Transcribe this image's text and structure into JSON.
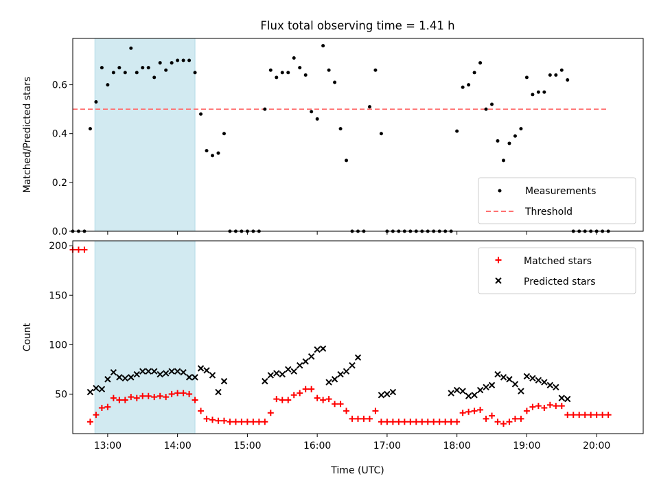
{
  "figure": {
    "title": "Flux total observing time = 1.41 h",
    "xlabel": "Time (UTC)"
  },
  "chart_data": [
    {
      "type": "scatter",
      "title": "Flux total observing time = 1.41 h",
      "ylabel": "Matched/Predicted stars",
      "xlim": [
        "12:30",
        "20:40"
      ],
      "ylim": [
        0,
        0.79
      ],
      "yticks": [
        0.0,
        0.2,
        0.4,
        0.6
      ],
      "ytick_labels": [
        "0.0",
        "0.2",
        "0.4",
        "0.6"
      ],
      "shaded_span": {
        "start": "12:49",
        "end": "14:15",
        "color": "#add8e6"
      },
      "threshold": {
        "value": 0.5,
        "from": "12:30",
        "to": "20:10",
        "color": "#ff7070"
      },
      "legend": {
        "position": "lower-right",
        "entries": [
          "Measurements",
          "Threshold"
        ]
      },
      "series": [
        {
          "name": "Measurements",
          "color": "#000000",
          "x": [
            "12:30",
            "12:35",
            "12:40",
            "12:45",
            "12:50",
            "12:55",
            "13:00",
            "13:05",
            "13:10",
            "13:15",
            "13:20",
            "13:25",
            "13:30",
            "13:35",
            "13:40",
            "13:45",
            "13:50",
            "13:55",
            "14:00",
            "14:05",
            "14:10",
            "14:15",
            "14:20",
            "14:25",
            "14:30",
            "14:35",
            "14:40",
            "14:45",
            "14:50",
            "14:55",
            "15:00",
            "15:05",
            "15:10",
            "15:15",
            "15:20",
            "15:25",
            "15:30",
            "15:35",
            "15:40",
            "15:45",
            "15:50",
            "15:55",
            "16:00",
            "16:05",
            "16:10",
            "16:15",
            "16:20",
            "16:25",
            "16:30",
            "16:35",
            "16:40",
            "16:45",
            "16:50",
            "16:55",
            "17:00",
            "17:05",
            "17:10",
            "17:15",
            "17:20",
            "17:25",
            "17:30",
            "17:35",
            "17:40",
            "17:45",
            "17:50",
            "17:55",
            "18:00",
            "18:05",
            "18:10",
            "18:15",
            "18:20",
            "18:25",
            "18:30",
            "18:35",
            "18:40",
            "18:45",
            "18:50",
            "18:55",
            "19:00",
            "19:05",
            "19:10",
            "19:15",
            "19:20",
            "19:25",
            "19:30",
            "19:35",
            "19:40",
            "19:45",
            "19:50",
            "19:55",
            "20:00",
            "20:05",
            "20:10"
          ],
          "y": [
            0,
            0,
            0,
            0.42,
            0.53,
            0.67,
            0.6,
            0.65,
            0.67,
            0.65,
            0.75,
            0.65,
            0.67,
            0.67,
            0.63,
            0.69,
            0.66,
            0.69,
            0.7,
            0.7,
            0.7,
            0.65,
            0.48,
            0.33,
            0.31,
            0.32,
            0.4,
            0,
            0,
            0,
            0,
            0,
            0,
            0.5,
            0.66,
            0.63,
            0.65,
            0.65,
            0.71,
            0.67,
            0.64,
            0.49,
            0.46,
            0.76,
            0.66,
            0.61,
            0.42,
            0.29,
            0,
            0,
            0,
            0.51,
            0.66,
            0.4,
            0,
            0,
            0,
            0,
            0,
            0,
            0,
            0,
            0,
            0,
            0,
            0,
            0.41,
            0.59,
            0.6,
            0.65,
            0.69,
            0.5,
            0.52,
            0.37,
            0.29,
            0.36,
            0.39,
            0.42,
            0.63,
            0.56,
            0.57,
            0.57,
            0.64,
            0.64,
            0.66,
            0.62,
            0,
            0,
            0,
            0,
            0,
            0,
            0
          ]
        }
      ]
    },
    {
      "type": "scatter",
      "ylabel": "Count",
      "xlim": [
        "12:30",
        "20:40"
      ],
      "ylim": [
        10,
        205
      ],
      "yticks": [
        50,
        100,
        150,
        200
      ],
      "ytick_labels": [
        "50",
        "100",
        "150",
        "200"
      ],
      "xticks": [
        "13:00",
        "14:00",
        "15:00",
        "16:00",
        "17:00",
        "18:00",
        "19:00",
        "20:00"
      ],
      "shaded_span": {
        "start": "12:49",
        "end": "14:15",
        "color": "#add8e6"
      },
      "legend": {
        "position": "top-right",
        "entries": [
          "Matched stars",
          "Predicted stars"
        ]
      },
      "series": [
        {
          "name": "Matched stars",
          "color": "#ff0000",
          "x": [
            "12:30",
            "12:35",
            "12:40",
            "12:45",
            "12:50",
            "12:55",
            "13:00",
            "13:05",
            "13:10",
            "13:15",
            "13:20",
            "13:25",
            "13:30",
            "13:35",
            "13:40",
            "13:45",
            "13:50",
            "13:55",
            "14:00",
            "14:05",
            "14:10",
            "14:15",
            "14:20",
            "14:25",
            "14:30",
            "14:35",
            "14:40",
            "14:45",
            "14:50",
            "14:55",
            "15:00",
            "15:05",
            "15:10",
            "15:15",
            "15:20",
            "15:25",
            "15:30",
            "15:35",
            "15:40",
            "15:45",
            "15:50",
            "15:55",
            "16:00",
            "16:05",
            "16:10",
            "16:15",
            "16:20",
            "16:25",
            "16:30",
            "16:35",
            "16:40",
            "16:45",
            "16:50",
            "16:55",
            "17:00",
            "17:05",
            "17:10",
            "17:15",
            "17:20",
            "17:25",
            "17:30",
            "17:35",
            "17:40",
            "17:45",
            "17:50",
            "17:55",
            "18:00",
            "18:05",
            "18:10",
            "18:15",
            "18:20",
            "18:25",
            "18:30",
            "18:35",
            "18:40",
            "18:45",
            "18:50",
            "18:55",
            "19:00",
            "19:05",
            "19:10",
            "19:15",
            "19:20",
            "19:25",
            "19:30",
            "19:35",
            "19:40",
            "19:45",
            "19:50",
            "19:55",
            "20:00",
            "20:05",
            "20:10"
          ],
          "y": [
            196,
            196,
            196,
            22,
            29,
            36,
            37,
            46,
            44,
            44,
            47,
            46,
            48,
            48,
            47,
            48,
            47,
            50,
            51,
            51,
            50,
            44,
            33,
            25,
            24,
            23,
            23,
            22,
            22,
            22,
            22,
            22,
            22,
            22,
            31,
            45,
            44,
            44,
            49,
            51,
            55,
            55,
            46,
            44,
            45,
            40,
            40,
            33,
            25,
            25,
            25,
            25,
            33,
            22,
            22,
            22,
            22,
            22,
            22,
            22,
            22,
            22,
            22,
            22,
            22,
            22,
            22,
            31,
            32,
            33,
            34,
            25,
            28,
            22,
            20,
            22,
            25,
            25,
            33,
            37,
            38,
            36,
            39,
            38,
            38,
            29,
            29,
            29,
            29,
            29,
            29,
            29,
            29
          ]
        },
        {
          "name": "Predicted stars",
          "color": "#000000",
          "x": [
            "12:45",
            "12:50",
            "12:55",
            "13:00",
            "13:05",
            "13:10",
            "13:15",
            "13:20",
            "13:25",
            "13:30",
            "13:35",
            "13:40",
            "13:45",
            "13:50",
            "13:55",
            "14:00",
            "14:05",
            "14:10",
            "14:15",
            "14:20",
            "14:25",
            "14:30",
            "14:35",
            "14:40",
            "15:15",
            "15:20",
            "15:25",
            "15:30",
            "15:35",
            "15:40",
            "15:45",
            "15:50",
            "15:55",
            "16:00",
            "16:05",
            "16:10",
            "16:15",
            "16:20",
            "16:25",
            "16:30",
            "16:35",
            "16:55",
            "17:00",
            "17:05",
            "17:55",
            "18:00",
            "18:05",
            "18:10",
            "18:15",
            "18:20",
            "18:25",
            "18:30",
            "18:35",
            "18:40",
            "18:45",
            "18:50",
            "18:55",
            "19:00",
            "19:05",
            "19:10",
            "19:15",
            "19:20",
            "19:25",
            "19:30",
            "19:35"
          ],
          "y": [
            52,
            56,
            55,
            65,
            72,
            67,
            66,
            67,
            70,
            73,
            73,
            73,
            70,
            71,
            73,
            73,
            72,
            67,
            67,
            76,
            74,
            69,
            52,
            63,
            63,
            69,
            71,
            70,
            75,
            73,
            79,
            83,
            88,
            95,
            96,
            62,
            65,
            70,
            73,
            79,
            87,
            49,
            50,
            52,
            51,
            54,
            53,
            48,
            49,
            54,
            57,
            59,
            70,
            67,
            65,
            60,
            53,
            68,
            66,
            64,
            62,
            59,
            57,
            46,
            45
          ]
        }
      ]
    }
  ]
}
